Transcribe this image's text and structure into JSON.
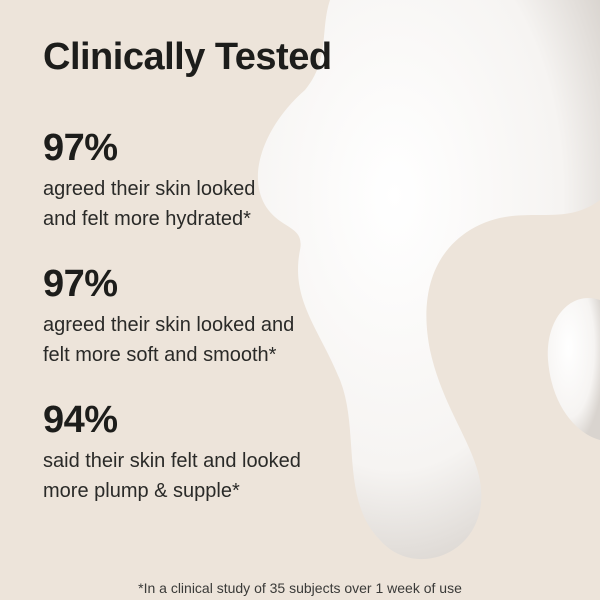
{
  "title": "Clinically Tested",
  "stats": [
    {
      "percent": "97%",
      "line1": "agreed their skin looked",
      "line2": "and felt more hydrated*"
    },
    {
      "percent": "97%",
      "line1": "agreed their skin looked and",
      "line2": "felt more soft and smooth*"
    },
    {
      "percent": "94%",
      "line1": "said their skin felt and looked",
      "line2": "more plump & supple*"
    }
  ],
  "footnote": "*In a clinical study of 35 subjects over 1 week of use",
  "colors": {
    "background": "#ede4da",
    "text": "#1d1d1b",
    "cream": "#ffffff"
  }
}
